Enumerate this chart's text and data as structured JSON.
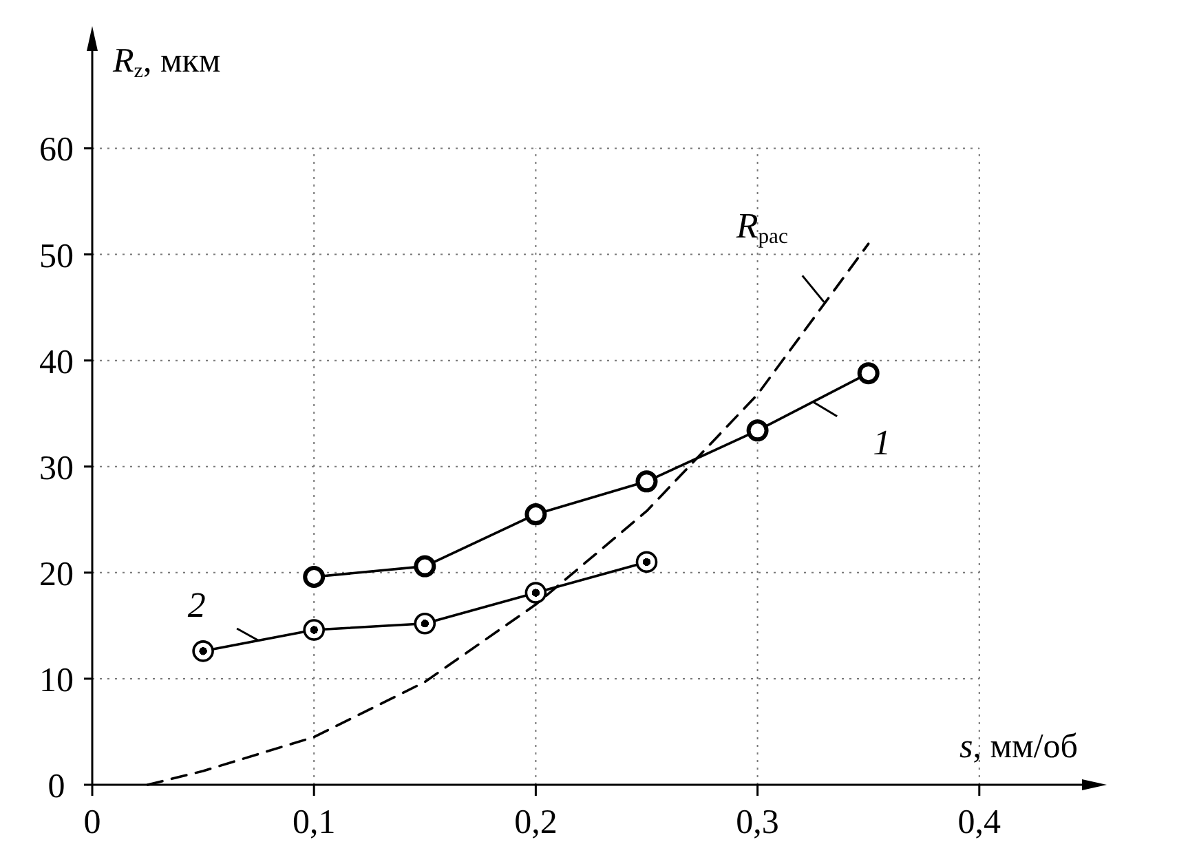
{
  "chart_data": {
    "type": "line",
    "xlabel": "s, мм/об",
    "ylabel": "R$_{z}$, мкм",
    "xlim": [
      0,
      0.455
    ],
    "ylim": [
      0,
      71
    ],
    "xticks": [
      0,
      {
        "value": 0.1,
        "label": "0,1"
      },
      {
        "value": 0.2,
        "label": "0,2"
      },
      {
        "value": 0.3,
        "label": "0,3"
      },
      {
        "value": 0.4,
        "label": "0,4"
      }
    ],
    "yticks": [
      0,
      10,
      20,
      30,
      40,
      50,
      60
    ],
    "grid": true,
    "series": [
      {
        "name": "1",
        "color": "#000000",
        "marker": "circle",
        "line_style": "solid",
        "x": [
          0.1,
          0.15,
          0.2,
          0.25,
          0.3,
          0.35
        ],
        "values": [
          19.6,
          20.6,
          25.5,
          28.6,
          33.4,
          38.8
        ]
      },
      {
        "name": "2",
        "color": "#000000",
        "marker": "circle",
        "line_style": "solid",
        "x": [
          0.05,
          0.1,
          0.15,
          0.2,
          0.25
        ],
        "values": [
          12.6,
          14.6,
          15.2,
          18.1,
          21
        ]
      },
      {
        "name": "R$_{рас}$",
        "color": "#000000",
        "marker": "none",
        "line_style": "dashed",
        "x": [
          0.025,
          0.05,
          0.1,
          0.15,
          0.2,
          0.25,
          0.3,
          0.35
        ],
        "values": [
          0,
          1.3,
          4.5,
          9.7,
          17,
          25.8,
          36.8,
          51
        ]
      }
    ]
  }
}
